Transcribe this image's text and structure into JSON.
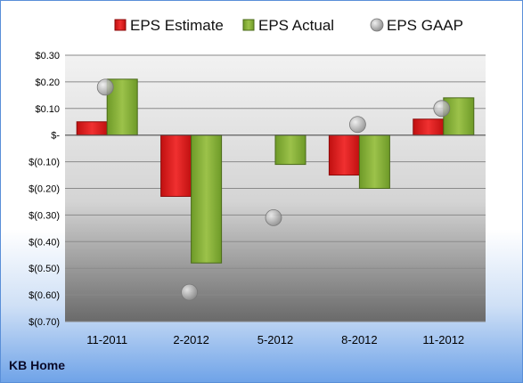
{
  "company": "KB Home",
  "chart_data": {
    "type": "bar",
    "categories": [
      "11-2011",
      "2-2012",
      "5-2012",
      "8-2012",
      "11-2012"
    ],
    "series": [
      {
        "name": "EPS Estimate",
        "kind": "bar",
        "color": "#e02020",
        "values": [
          0.05,
          -0.23,
          null,
          -0.15,
          0.06
        ]
      },
      {
        "name": "EPS Actual",
        "kind": "bar",
        "color": "#8ab23a",
        "values": [
          0.21,
          -0.48,
          -0.11,
          -0.2,
          0.14
        ]
      },
      {
        "name": "EPS GAAP",
        "kind": "marker",
        "color": "#a8a8a8",
        "values": [
          0.18,
          -0.59,
          -0.31,
          0.04,
          0.1
        ]
      }
    ],
    "yticks": [
      {
        "value": 0.3,
        "label": "$0.30"
      },
      {
        "value": 0.2,
        "label": "$0.20"
      },
      {
        "value": 0.1,
        "label": "$0.10"
      },
      {
        "value": 0.0,
        "label": "$-"
      },
      {
        "value": -0.1,
        "label": "$(0.10)"
      },
      {
        "value": -0.2,
        "label": "$(0.20)"
      },
      {
        "value": -0.3,
        "label": "$(0.30)"
      },
      {
        "value": -0.4,
        "label": "$(0.40)"
      },
      {
        "value": -0.5,
        "label": "$(0.50)"
      },
      {
        "value": -0.6,
        "label": "$(0.60)"
      },
      {
        "value": -0.7,
        "label": "$(0.70)"
      }
    ],
    "ylim": [
      -0.7,
      0.3
    ],
    "grid": true,
    "legend_position": "top"
  }
}
